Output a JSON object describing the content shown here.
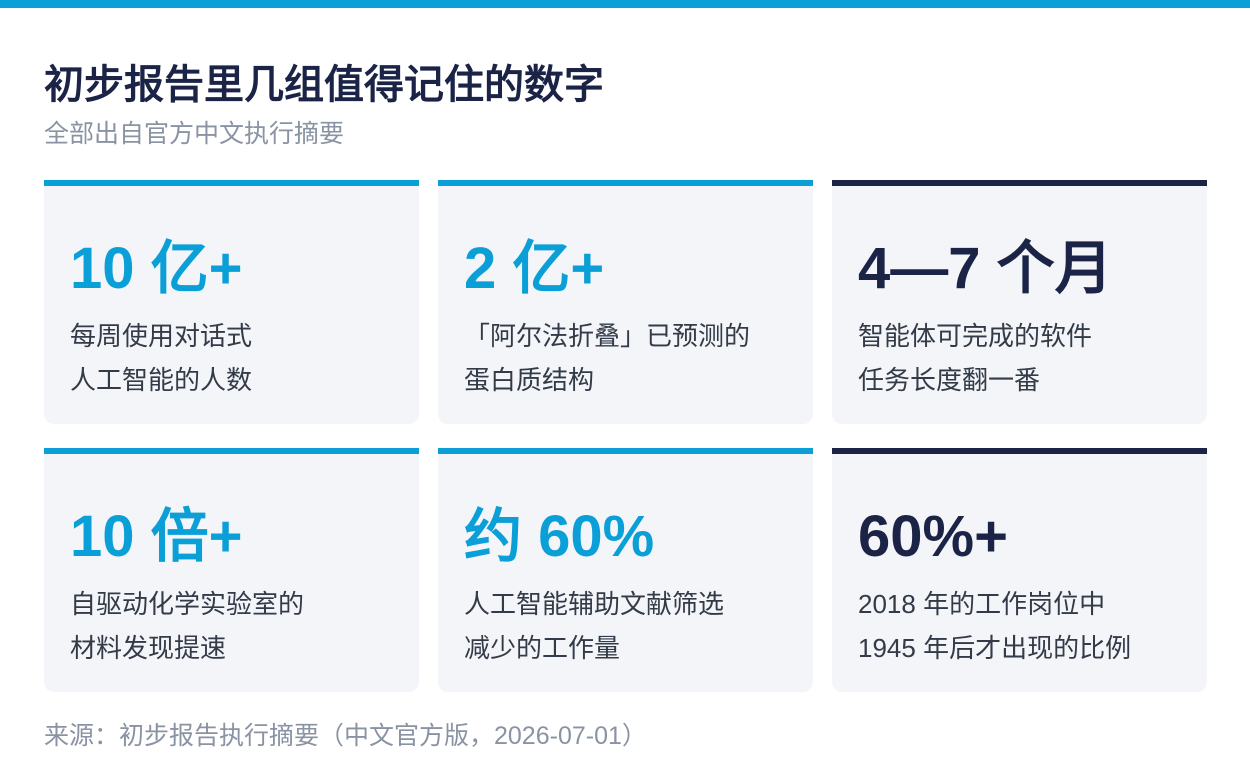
{
  "header": {
    "title": "初步报告里几组值得记住的数字",
    "subtitle": "全部出自官方中文执行摘要"
  },
  "cards": [
    {
      "value": "10 亿+",
      "lines": [
        "每周使用对话式",
        "人工智能的人数"
      ],
      "color": "#0b9fd8"
    },
    {
      "value": "2 亿+",
      "lines": [
        "「阿尔法折叠」已预测的",
        "蛋白质结构"
      ],
      "color": "#0b9fd8"
    },
    {
      "value": "4—7 个月",
      "lines": [
        "智能体可完成的软件",
        "任务长度翻一番"
      ],
      "color": "#1b2446"
    },
    {
      "value": "10 倍+",
      "lines": [
        "自驱动化学实验室的",
        "材料发现提速"
      ],
      "color": "#0b9fd8"
    },
    {
      "value": "约 60%",
      "lines": [
        "人工智能辅助文献筛选",
        "减少的工作量"
      ],
      "color": "#0b9fd8"
    },
    {
      "value": "60%+",
      "lines": [
        "2018 年的工作岗位中",
        "1945 年后才出现的比例"
      ],
      "color": "#1b2446"
    }
  ],
  "source": "来源：初步报告执行摘要（中文官方版，2026-07-01）"
}
